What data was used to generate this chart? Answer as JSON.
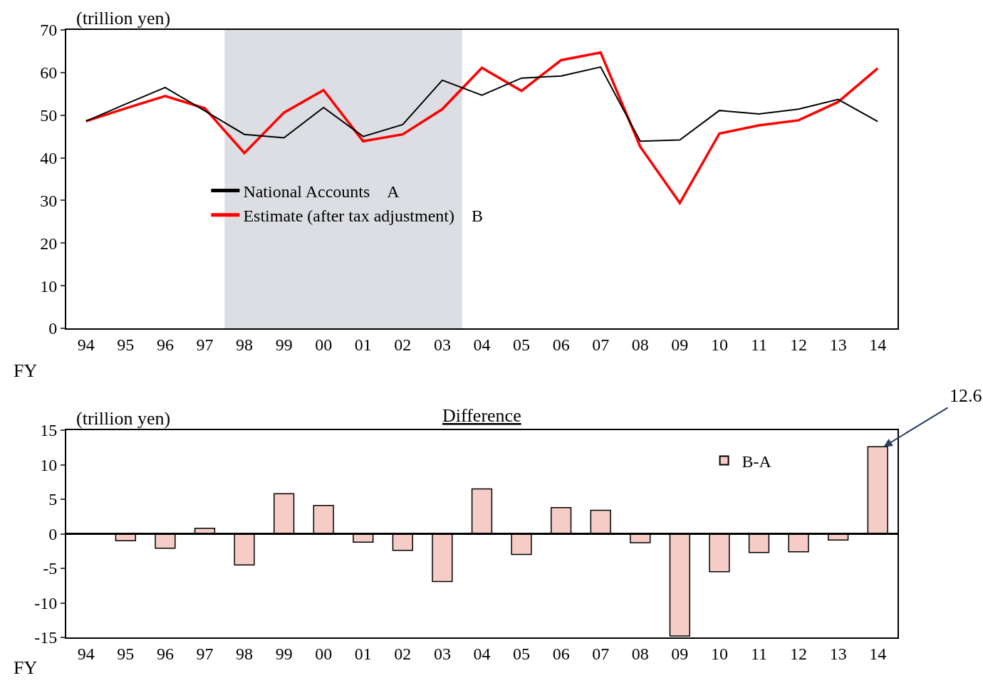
{
  "chart_data": [
    {
      "type": "line",
      "ylabel": "(trillion yen)",
      "xlabel": "FY",
      "categories": [
        "94",
        "95",
        "96",
        "97",
        "98",
        "99",
        "00",
        "01",
        "02",
        "03",
        "04",
        "05",
        "06",
        "07",
        "08",
        "09",
        "10",
        "11",
        "12",
        "13",
        "14"
      ],
      "series": [
        {
          "name": "National Accounts　A",
          "color": "#000000",
          "values": [
            48.6,
            52.6,
            56.5,
            51.0,
            45.5,
            44.7,
            51.8,
            45.0,
            47.8,
            58.2,
            54.7,
            58.7,
            59.2,
            61.3,
            43.9,
            44.2,
            51.1,
            50.3,
            51.4,
            53.7,
            48.5
          ]
        },
        {
          "name": "Estimate (after tax adjustment)　B",
          "color": "#ff0000",
          "values": [
            48.6,
            51.6,
            54.5,
            51.6,
            41.1,
            50.6,
            55.9,
            43.9,
            45.5,
            51.4,
            61.1,
            55.7,
            62.9,
            64.7,
            42.6,
            29.4,
            45.7,
            47.6,
            48.8,
            53.1,
            61.0
          ]
        }
      ],
      "bands": [
        {
          "axis": "x",
          "from": "98",
          "to": "03",
          "color": "#dcdee3"
        }
      ],
      "ylim": [
        0,
        70
      ],
      "yticks": [
        0,
        10,
        20,
        30,
        40,
        50,
        60,
        70
      ],
      "grid": false,
      "legend": "center",
      "line_style": "solid",
      "marker": "none"
    },
    {
      "type": "bar",
      "title": "Difference",
      "ylabel": "(trillion yen)",
      "xlabel": "FY",
      "categories": [
        "94",
        "95",
        "96",
        "97",
        "98",
        "99",
        "00",
        "01",
        "02",
        "03",
        "04",
        "05",
        "06",
        "07",
        "08",
        "09",
        "10",
        "11",
        "12",
        "13",
        "14"
      ],
      "series": [
        {
          "name": "B-A",
          "color": "#f6cdc6",
          "values": [
            null,
            -1.0,
            -2.1,
            0.8,
            -4.5,
            5.8,
            4.1,
            -1.2,
            -2.4,
            -6.9,
            6.5,
            -3.0,
            3.8,
            3.4,
            -1.3,
            -14.8,
            -5.5,
            -2.7,
            -2.6,
            -0.9,
            12.6
          ]
        }
      ],
      "annotations": [
        {
          "text": "12.6",
          "x": "14",
          "y": 12.6
        }
      ],
      "ref_lines": [
        {
          "axis": "y",
          "value": 0,
          "color": "#000000"
        }
      ],
      "ylim": [
        -15,
        15
      ],
      "yticks": [
        -15,
        -10,
        -5,
        0,
        5,
        10,
        15
      ],
      "grid": false,
      "legend": "top right"
    }
  ]
}
